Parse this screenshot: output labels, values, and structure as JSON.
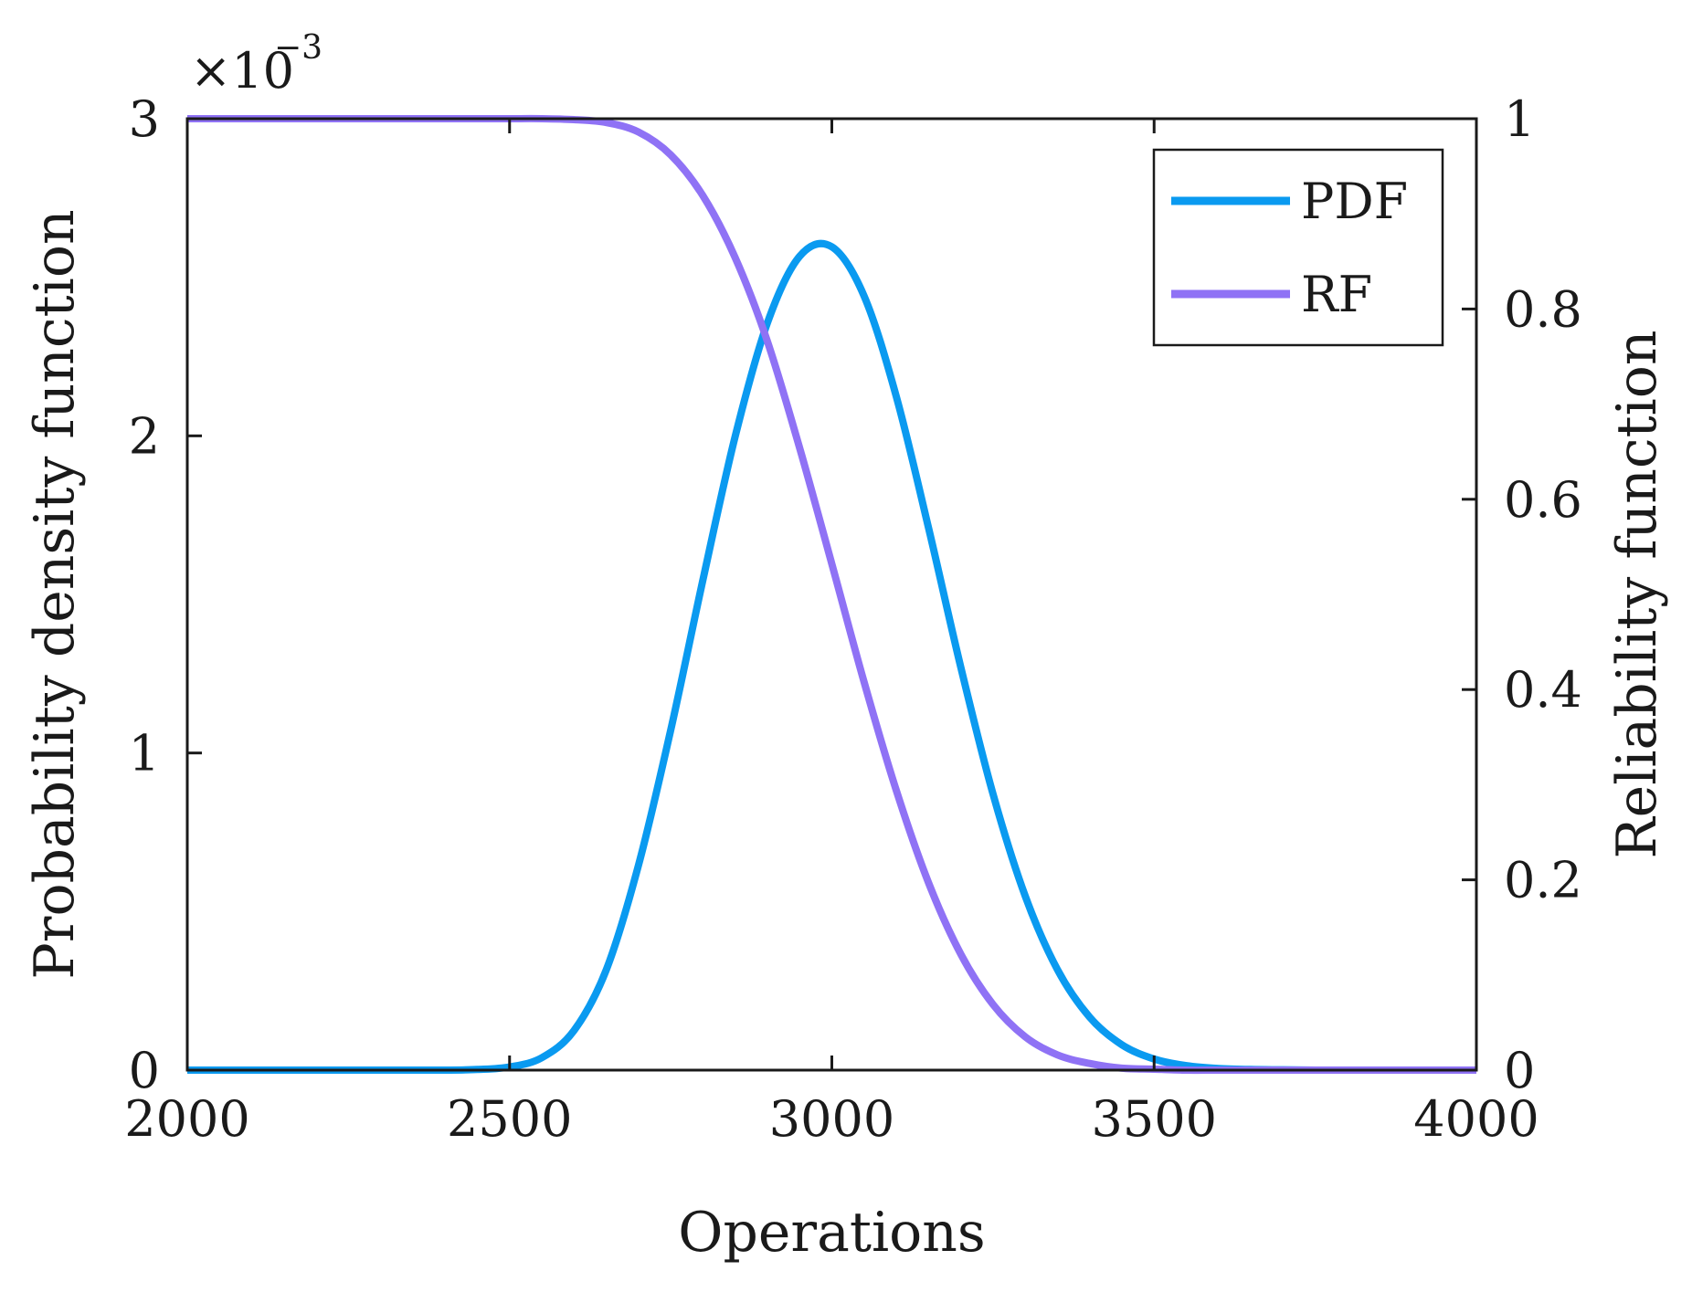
{
  "chart_data": {
    "type": "line",
    "x": [
      2000,
      2050,
      2100,
      2150,
      2200,
      2250,
      2300,
      2350,
      2400,
      2450,
      2500,
      2550,
      2600,
      2650,
      2700,
      2750,
      2800,
      2850,
      2900,
      2950,
      3000,
      3050,
      3100,
      3150,
      3200,
      3250,
      3300,
      3350,
      3400,
      3450,
      3500,
      3550,
      3600,
      3650,
      3700,
      3750,
      3800,
      3850,
      3900,
      3950,
      4000
    ],
    "series": [
      {
        "name": "PDF",
        "axis": "left",
        "color": "#0a9af0",
        "values": [
          0,
          0,
          0,
          0,
          0,
          0,
          0,
          0,
          0.0,
          2e-06,
          1e-05,
          3.9e-05,
          0.000125,
          0.000316,
          0.000646,
          0.001072,
          0.001546,
          0.001998,
          0.002356,
          0.002566,
          0.002596,
          0.002441,
          0.002124,
          0.00171,
          0.001271,
          0.000871,
          0.000549,
          0.000317,
          0.000167,
          8e-05,
          3.5e-05,
          1.4e-05,
          5e-06,
          2e-06,
          1e-06,
          0,
          0,
          0,
          0,
          0,
          0
        ]
      },
      {
        "name": "RF",
        "axis": "right",
        "color": "#8f72f5",
        "values": [
          1,
          1,
          1,
          1,
          1,
          1,
          1,
          1,
          1,
          1,
          1,
          1,
          0.999,
          0.996,
          0.986,
          0.962,
          0.919,
          0.854,
          0.766,
          0.654,
          0.532,
          0.408,
          0.294,
          0.197,
          0.122,
          0.069,
          0.035,
          0.016,
          0.007,
          0.002,
          0.001,
          0,
          0,
          0,
          0,
          0,
          0,
          0,
          0,
          0,
          0
        ]
      }
    ],
    "xlabel": "Operations",
    "ylabel_left": "Probability density function",
    "ylabel_right": "Reliability function",
    "xlim": [
      2000,
      4000
    ],
    "ylim_left": [
      0,
      0.003
    ],
    "ylim_right": [
      0,
      1
    ],
    "xticks": [
      2000,
      2500,
      3000,
      3500,
      4000
    ],
    "xtick_labels": [
      "2000",
      "2500",
      "3000",
      "3500",
      "4000"
    ],
    "yticks_left": [
      0,
      0.001,
      0.002,
      0.003
    ],
    "ytick_labels_left": [
      "0",
      "1",
      "2",
      "3"
    ],
    "yticks_right": [
      0,
      0.2,
      0.4,
      0.6,
      0.8,
      1
    ],
    "ytick_labels_right": [
      "0",
      "0.2",
      "0.4",
      "0.6",
      "0.8",
      "1"
    ],
    "left_exponent_base": "×10",
    "left_exponent_power": "−3",
    "legend": {
      "position": "top-right",
      "entries": [
        "PDF",
        "RF"
      ]
    },
    "grid": false
  }
}
